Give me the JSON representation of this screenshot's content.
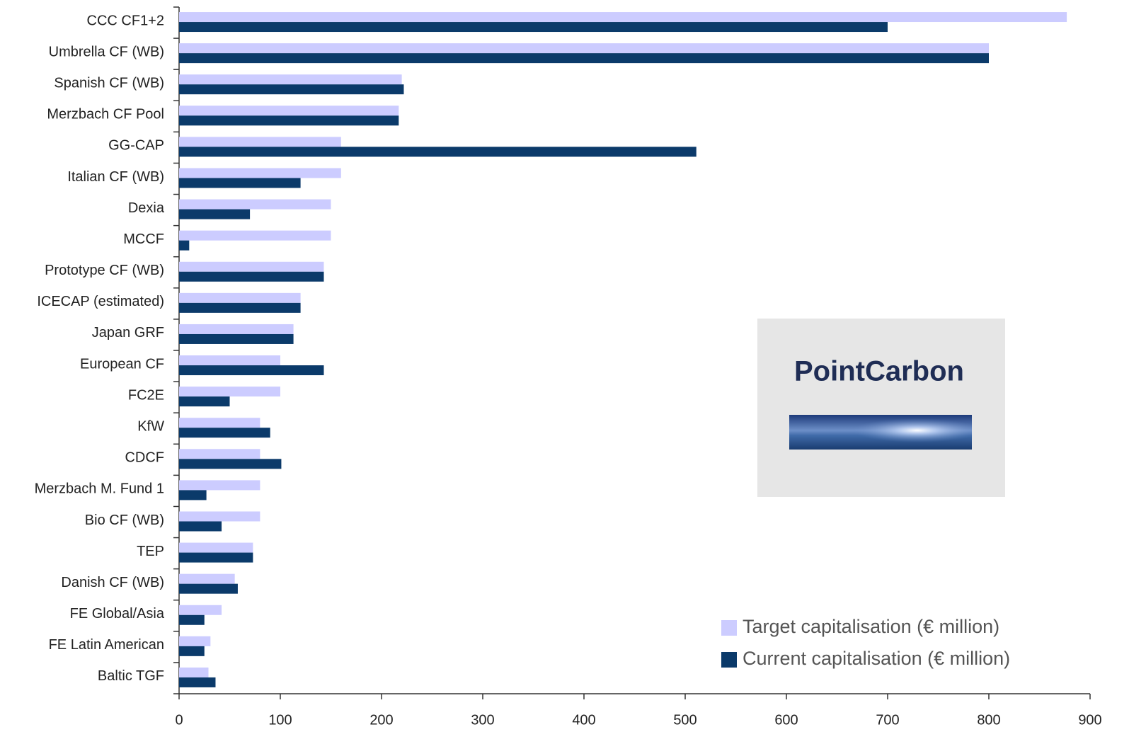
{
  "chart_data": {
    "type": "hbar",
    "categories": [
      "CCC CF1+2",
      "Umbrella CF (WB)",
      "Spanish CF (WB)",
      "Merzbach CF Pool",
      "GG-CAP",
      "Italian CF (WB)",
      "Dexia",
      "MCCF",
      "Prototype CF (WB)",
      "ICECAP (estimated)",
      "Japan GRF",
      "European CF",
      "FC2E",
      "KfW",
      "CDCF",
      "Merzbach M. Fund 1",
      "Bio CF (WB)",
      "TEP",
      "Danish CF (WB)",
      "FE Global/Asia",
      "FE Latin American",
      "Baltic TGF"
    ],
    "series": [
      {
        "name": "Target capitalisation (€ million)",
        "color": "#ccccff",
        "values": [
          877,
          800,
          220,
          217,
          160,
          160,
          150,
          150,
          143,
          120,
          113,
          100,
          100,
          80,
          80,
          80,
          80,
          73,
          55,
          42,
          31,
          29
        ]
      },
      {
        "name": "Current capitalisation (€ million)",
        "color": "#0b3a6a",
        "values": [
          700,
          800,
          222,
          217,
          511,
          120,
          70,
          10,
          143,
          120,
          113,
          143,
          50,
          90,
          101,
          27,
          42,
          73,
          58,
          25,
          25,
          36
        ]
      }
    ],
    "xlim": [
      0,
      900
    ],
    "xticks": [
      0,
      100,
      200,
      300,
      400,
      500,
      600,
      700,
      800,
      900
    ],
    "legend": "lower right",
    "logo": "PointCarbon"
  }
}
